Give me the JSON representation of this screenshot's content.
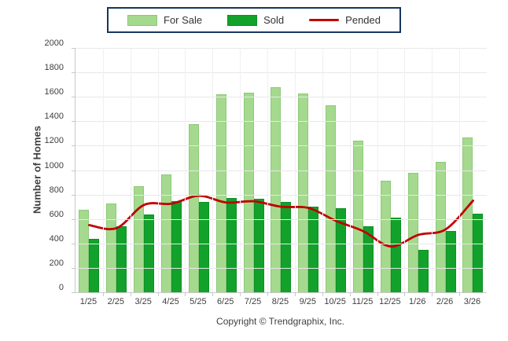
{
  "legend": {
    "items": [
      {
        "label": "For Sale",
        "swatch": "light-green-bar"
      },
      {
        "label": "Sold",
        "swatch": "dark-green-bar"
      },
      {
        "label": "Pended",
        "swatch": "red-line"
      }
    ]
  },
  "y_axis": {
    "title": "Number of Homes"
  },
  "footer": {
    "copyright": "Copyright © Trendgraphix, Inc."
  },
  "colors": {
    "for_sale": "#a5d98e",
    "sold": "#12a22b",
    "pended": "#c00000",
    "legend_border": "#17375d",
    "gridline": "#e8e8e8",
    "axis_text": "#404040"
  },
  "chart_data": {
    "type": "bar",
    "subtype": "grouped bars with overlay line",
    "categories": [
      "1/25",
      "2/25",
      "3/25",
      "4/25",
      "5/25",
      "6/25",
      "7/25",
      "8/25",
      "9/25",
      "10/25",
      "11/25",
      "12/25",
      "1/26",
      "2/26",
      "3/26"
    ],
    "series": [
      {
        "name": "For Sale",
        "type": "bar",
        "color": "#a5d98e",
        "values": [
          675,
          725,
          870,
          965,
          1375,
          1620,
          1635,
          1680,
          1630,
          1530,
          1240,
          915,
          975,
          1070,
          1270
        ]
      },
      {
        "name": "Sold",
        "type": "bar",
        "color": "#12a22b",
        "values": [
          435,
          540,
          635,
          745,
          740,
          775,
          765,
          740,
          700,
          685,
          540,
          610,
          345,
          500,
          645
        ]
      },
      {
        "name": "Pended",
        "type": "line",
        "color": "#c00000",
        "values": [
          550,
          525,
          715,
          725,
          790,
          735,
          745,
          700,
          690,
          585,
          500,
          375,
          470,
          515,
          750
        ]
      }
    ],
    "title": "",
    "xlabel": "",
    "ylabel": "Number of Homes",
    "ylim": [
      0,
      2000
    ],
    "ytick_step": 200,
    "grid": true,
    "legend_position": "top-center"
  }
}
